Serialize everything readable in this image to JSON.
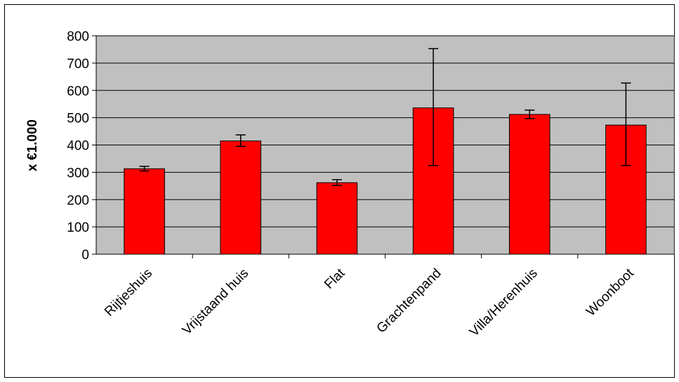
{
  "chart_data": {
    "type": "bar",
    "categories": [
      "Rijtjeshuis",
      "Vrijstaand huis",
      "Flat",
      "Grachtenpand",
      "Villa/Herenhuis",
      "Woonboot"
    ],
    "values": [
      313,
      415,
      262,
      536,
      512,
      473
    ],
    "error_low": [
      305,
      395,
      252,
      325,
      497,
      325
    ],
    "error_high": [
      322,
      437,
      273,
      753,
      528,
      627
    ],
    "ylabel": "x €1.000",
    "ylim": [
      0,
      800
    ],
    "yticks": [
      0,
      100,
      200,
      300,
      400,
      500,
      600,
      700,
      800
    ],
    "ytick_labels": [
      "0",
      "100",
      "200",
      "300",
      "400",
      "500",
      "600",
      "700",
      "800"
    ],
    "grid": true,
    "colors": {
      "bar": "#ff0000",
      "plot_background": "#c0c0c0",
      "grid": "#000000"
    }
  }
}
